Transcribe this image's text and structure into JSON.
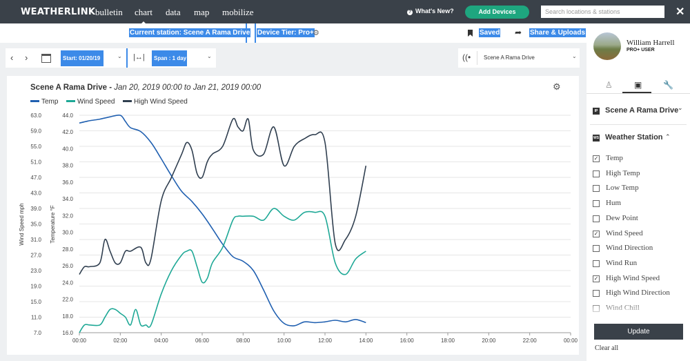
{
  "app": {
    "logo": "WEATHERLINK"
  },
  "nav": {
    "items": [
      "bulletin",
      "chart",
      "data",
      "map",
      "mobilize"
    ],
    "active": "chart"
  },
  "topbar": {
    "whats_new": "What's New?",
    "add_devices": "Add Devices",
    "search_placeholder": "Search locations & stations",
    "close_icon": "close-icon"
  },
  "subbar": {
    "current_station": "Current station: Scene A Rama Drive",
    "device_tier": "Device Tier: Pro+",
    "saved": "Saved",
    "share": "Share & Uploads"
  },
  "controls": {
    "start": "Start: 01/20/19",
    "span": "Span : 1 day",
    "station": "Scene A Rama Drive"
  },
  "chart_header": {
    "station": "Scene A Rama Drive -",
    "range": "Jan 20, 2019 00:00 to Jan 21, 2019 00:00"
  },
  "legend": [
    {
      "name": "Temp",
      "color": "#1f5fb0"
    },
    {
      "name": "Wind Speed",
      "color": "#1ea896"
    },
    {
      "name": "High Wind Speed",
      "color": "#2f3e4f"
    }
  ],
  "chart_data": {
    "type": "line",
    "x_ticks": [
      "00:00",
      "02:00",
      "04:00",
      "06:00",
      "08:00",
      "10:00",
      "12:00",
      "14:00",
      "16:00",
      "18:00",
      "20:00",
      "22:00",
      "00:00"
    ],
    "xlim_hours": [
      0,
      24
    ],
    "y_left_wind": {
      "label": "Wind Speed mph",
      "ticks": [
        "7.0",
        "11.0",
        "15.0",
        "19.0",
        "23.0",
        "27.0",
        "31.0",
        "35.0",
        "39.0",
        "43.0",
        "47.0",
        "51.0",
        "55.0",
        "59.0",
        "63.0"
      ],
      "ylim": [
        7,
        63
      ]
    },
    "y_left_temp": {
      "label": "Temperature °F",
      "ticks": [
        "16.0",
        "18.0",
        "22.0",
        "24.0",
        "26.0",
        "28.0",
        "30.0",
        "32.0",
        "34.0",
        "36.0",
        "38.0",
        "40.0",
        "42.0",
        "44.0"
      ]
    },
    "temp_range": [
      16,
      44
    ],
    "grid": true,
    "series": [
      {
        "name": "Temp",
        "axis": "temp",
        "color": "#1f5fb0",
        "x": [
          0,
          0.5,
          1,
          1.5,
          2,
          2.25,
          2.5,
          3,
          3.5,
          4,
          4.5,
          5,
          5.5,
          6,
          6.5,
          7,
          7.5,
          8,
          8.5,
          9,
          9.5,
          10,
          10.5,
          11,
          11.5,
          12,
          12.5,
          13,
          13.5,
          14
        ],
        "values": [
          43.0,
          43.3,
          43.5,
          43.8,
          44.0,
          43.2,
          42.4,
          41.9,
          40.5,
          38.4,
          36.2,
          34.2,
          32.9,
          31.3,
          29.4,
          27.4,
          25.8,
          25.2,
          24.0,
          21.5,
          18.8,
          17.2,
          16.9,
          17.4,
          17.3,
          17.4,
          17.6,
          17.4,
          17.7,
          17.3
        ]
      },
      {
        "name": "Wind Speed",
        "axis": "wind",
        "color": "#1ea896",
        "x": [
          0,
          0.25,
          0.5,
          1,
          1.25,
          1.5,
          1.75,
          2,
          2.25,
          2.5,
          2.75,
          3,
          3.25,
          3.5,
          4,
          4.5,
          5,
          5.25,
          5.5,
          5.75,
          6,
          6.25,
          6.5,
          7,
          7.5,
          7.75,
          8,
          8.5,
          9,
          9.5,
          10,
          10.5,
          11,
          11.5,
          12,
          12.5,
          13,
          13.5,
          14
        ],
        "values": [
          7.0,
          9.0,
          9.0,
          9.0,
          11.0,
          13.0,
          13.0,
          12.0,
          11.0,
          9.0,
          13.0,
          9.0,
          9.0,
          9.0,
          17.0,
          23.0,
          27.0,
          28.0,
          28.0,
          24.0,
          20.0,
          21.0,
          25.0,
          29.0,
          36.0,
          37.0,
          37.0,
          37.0,
          36.0,
          39.0,
          37.0,
          36.0,
          38.0,
          38.0,
          37.0,
          25.0,
          22.0,
          26.0,
          28.0
        ]
      },
      {
        "name": "High Wind Speed",
        "axis": "wind",
        "color": "#2f3e4f",
        "x": [
          0,
          0.25,
          0.5,
          1,
          1.25,
          1.5,
          1.75,
          2,
          2.25,
          2.5,
          3,
          3.25,
          3.5,
          4,
          4.5,
          5,
          5.25,
          5.5,
          5.75,
          6,
          6.25,
          6.5,
          7,
          7.5,
          7.75,
          8,
          8.25,
          8.5,
          9,
          9.5,
          10,
          10.5,
          11,
          11.5,
          12,
          12.5,
          13,
          13.5,
          14
        ],
        "values": [
          22.0,
          24.0,
          24.0,
          25.0,
          31.0,
          28.0,
          25.0,
          25.0,
          28.0,
          28.0,
          29.0,
          25.0,
          26.0,
          41.0,
          47.0,
          53.0,
          56.0,
          54.0,
          48.0,
          47.0,
          51.0,
          53.0,
          55.0,
          62.0,
          60.0,
          59.0,
          62.0,
          54.0,
          53.0,
          60.0,
          50.0,
          55.0,
          57.0,
          58.0,
          56.0,
          30.0,
          31.0,
          37.0,
          50.0
        ]
      }
    ]
  },
  "user": {
    "name": "William Harrell",
    "tier": "PRO+ USER"
  },
  "sidebar": {
    "tabs": [
      "person-icon",
      "device-icon",
      "wrench-icon"
    ],
    "station_section": {
      "badge": "IP",
      "title": "Scene A Rama Drive"
    },
    "weather_section": {
      "badge": "WS",
      "title": "Weather Station"
    },
    "items": [
      {
        "label": "Temp",
        "checked": true
      },
      {
        "label": "High Temp",
        "checked": false
      },
      {
        "label": "Low Temp",
        "checked": false
      },
      {
        "label": "Hum",
        "checked": false
      },
      {
        "label": "Dew Point",
        "checked": false
      },
      {
        "label": "Wind Speed",
        "checked": true
      },
      {
        "label": "Wind Direction",
        "checked": false
      },
      {
        "label": "Wind Run",
        "checked": false
      },
      {
        "label": "High Wind Speed",
        "checked": true
      },
      {
        "label": "High Wind Direction",
        "checked": false
      },
      {
        "label": "Wind Chill",
        "checked": false
      }
    ],
    "update": "Update",
    "clear_all": "Clear all"
  }
}
